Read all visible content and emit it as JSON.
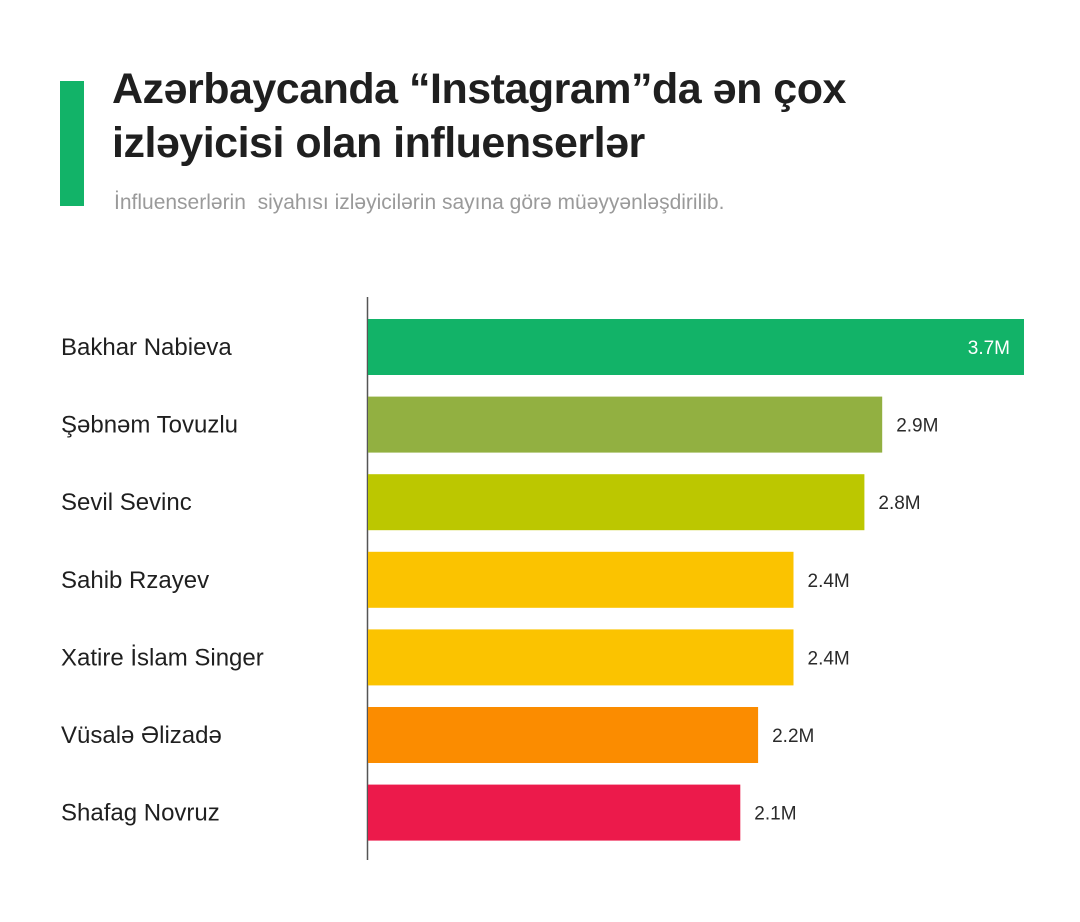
{
  "header": {
    "title": "Azərbaycanda “Instagram”da ən çox\nizləyicisi olan  influenserlər",
    "subtitle": "İnfluenserlərin  siyahısı izləyicilərin sayına görə müəyyənləşdirilib."
  },
  "colors": {
    "accent": "#12b368",
    "axis": "#555555",
    "title": "#1f1f1f",
    "subtitle": "#9a9a9a"
  },
  "chart_data": {
    "type": "bar",
    "orientation": "horizontal",
    "title": "Azərbaycanda “Instagram”da ən çox izləyicisi olan  influenserlər",
    "subtitle": "İnfluenserlərin  siyahısı izləyicilərin sayına görə müəyyənləşdirilib.",
    "xlabel": "",
    "ylabel": "",
    "xlim": [
      0,
      3.7
    ],
    "grid": false,
    "categories": [
      "Bakhar Nabieva",
      "Şəbnəm Tovuzlu",
      "Sevil Sevinc",
      "Sahib Rzayev",
      "Xatire İslam Singer",
      "Vüsalə Əlizadə",
      "Shafag Novruz"
    ],
    "values": [
      3.7,
      2.9,
      2.8,
      2.4,
      2.4,
      2.2,
      2.1
    ],
    "value_labels": [
      "3.7M",
      "2.9M",
      "2.8M",
      "2.4M",
      "2.4M",
      "2.2M",
      "2.1M"
    ],
    "bar_colors": [
      "#12b368",
      "#92b041",
      "#bcc700",
      "#fbc300",
      "#fbc300",
      "#fb8c00",
      "#ec1a4b"
    ]
  }
}
